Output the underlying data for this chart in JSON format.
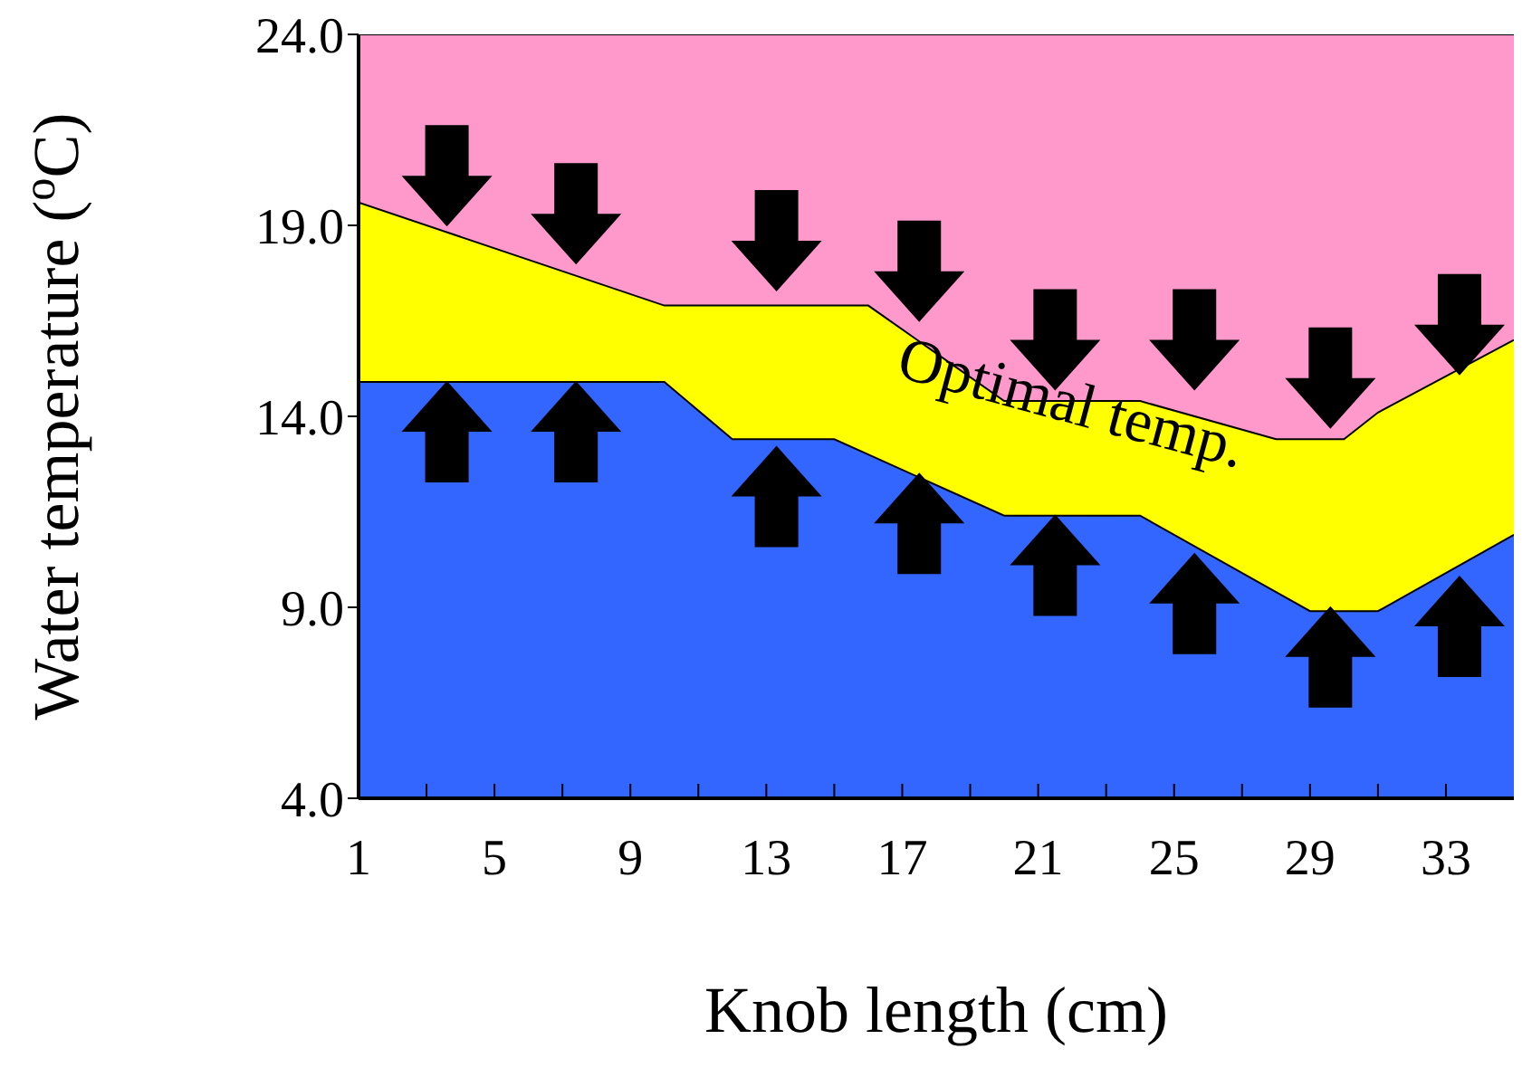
{
  "chart_data": {
    "type": "area",
    "xlabel": "Knob length (cm)",
    "ylabel": "Water temperature ($^{o}$C)",
    "annotations": [
      {
        "text": "Optimal temp.",
        "x": 22,
        "y": 14.4
      }
    ],
    "x": [
      1,
      10,
      12,
      15,
      16,
      20,
      24,
      28,
      29,
      30,
      31,
      35
    ],
    "series": [
      {
        "color": "#ff99cc",
        "values": [
          24,
          24,
          24,
          24,
          24,
          24,
          24,
          24,
          24,
          24,
          24,
          24
        ]
      },
      {
        "color": "#ffff00",
        "values": [
          19.6,
          16.9,
          16.9,
          16.9,
          16.9,
          14.4,
          14.4,
          13.4,
          13.4,
          13.4,
          14.1,
          16.0
        ]
      },
      {
        "color": "#3366ff",
        "values": [
          14.9,
          14.9,
          13.4,
          13.4,
          13.0,
          11.4,
          11.4,
          9.4,
          8.9,
          8.9,
          8.9,
          10.9
        ]
      }
    ],
    "xlim": [
      1,
      35
    ],
    "xticks": [
      1,
      {
        "value": 3,
        "label": null
      },
      5,
      {
        "value": 7,
        "label": null
      },
      9,
      {
        "value": 11,
        "label": null
      },
      13,
      {
        "value": 15,
        "label": null
      },
      17,
      {
        "value": 19,
        "label": null
      },
      21,
      {
        "value": 23,
        "label": null
      },
      25,
      {
        "value": 27,
        "label": null
      },
      29,
      {
        "value": 31,
        "label": null
      },
      33
    ],
    "ylim": [
      4,
      24
    ],
    "yticks": [
      {
        "value": 4,
        "label": "4.0"
      },
      {
        "value": 9,
        "label": "9.0"
      },
      {
        "value": 14,
        "label": "14.0"
      },
      {
        "value": 19,
        "label": "19.0"
      },
      {
        "value": 24,
        "label": "24.0"
      }
    ],
    "grid": false,
    "legend": false
  }
}
